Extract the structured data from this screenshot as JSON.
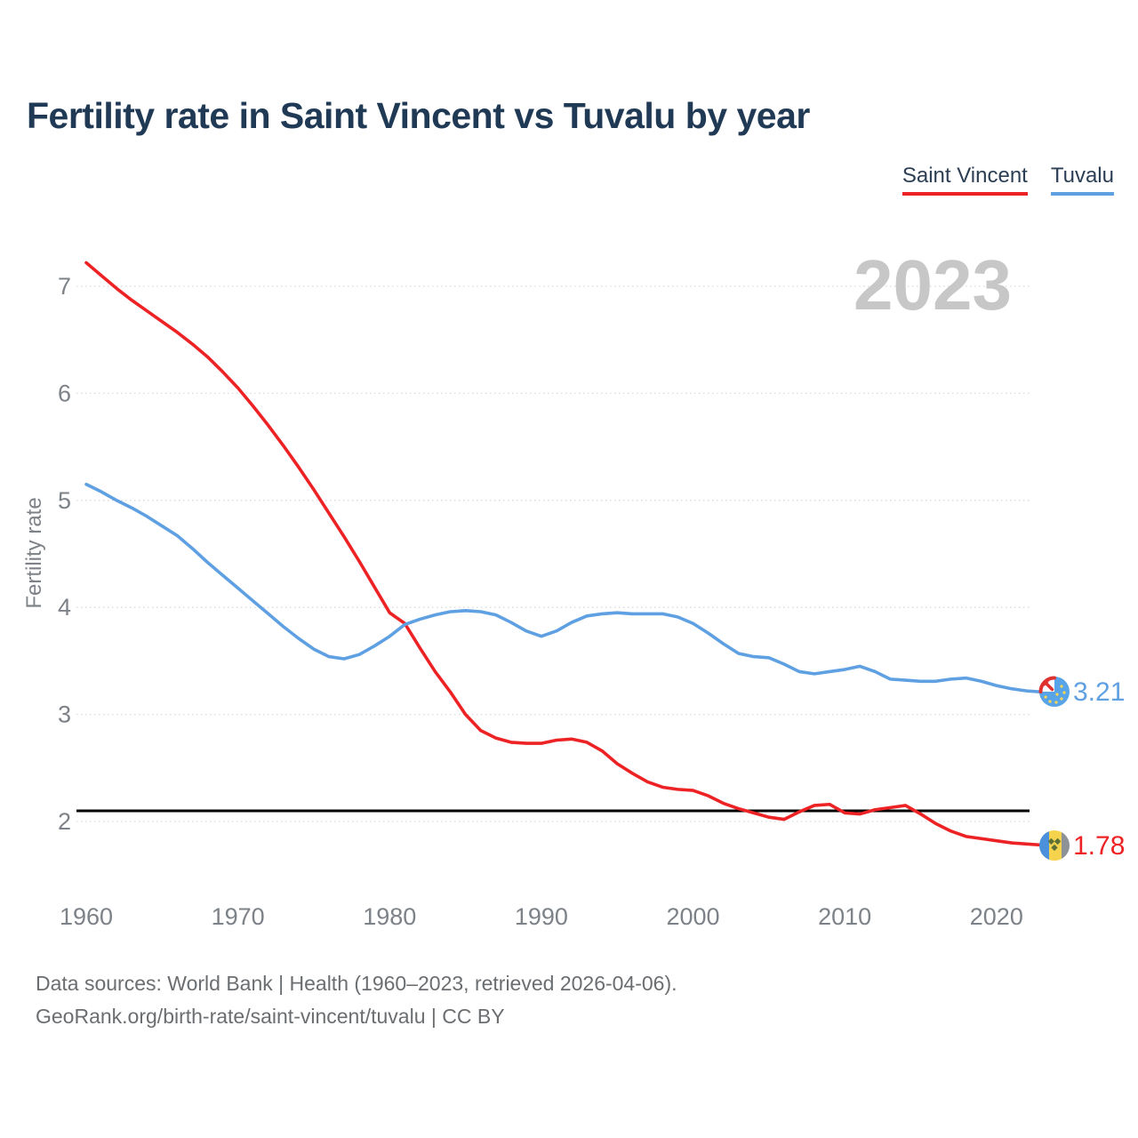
{
  "title": "Fertility rate in Saint Vincent vs Tuvalu by year",
  "watermark": "2023",
  "legend": {
    "items": [
      {
        "label": "Saint Vincent",
        "color": "#ed2224"
      },
      {
        "label": "Tuvalu",
        "color": "#5ea0e2"
      }
    ]
  },
  "footer": {
    "line1": "Data sources: World Bank | Health (1960–2023, retrieved 2026-04-06).",
    "line2": "GeoRank.org/birth-rate/saint-vincent/tuvalu | CC BY"
  },
  "end_labels": {
    "saint_vincent": "1.78",
    "tuvalu": "3.21"
  },
  "icons": {
    "saint_vincent_flag": "saint-vincent-flag-icon",
    "tuvalu_flag": "tuvalu-flag-icon"
  },
  "colors": {
    "saint_vincent": "#ed2224",
    "tuvalu": "#5ea0e2",
    "reference_line": "#000000",
    "grid": "#d9d9d9",
    "axis_text": "#7d8288",
    "watermark": "#c7c7c7",
    "title_text": "#203a56"
  },
  "chart_data": {
    "type": "line",
    "title": "Fertility rate in Saint Vincent vs Tuvalu by year",
    "xlabel": "",
    "ylabel": "Fertility rate",
    "xlim": [
      1960,
      2023
    ],
    "ylim": [
      1.4,
      7.4
    ],
    "x_ticks": [
      1960,
      1970,
      1980,
      1990,
      2000,
      2010,
      2020
    ],
    "y_ticks": [
      2,
      3,
      4,
      5,
      6,
      7
    ],
    "grid": "horizontal-dotted",
    "legend_position": "top-right",
    "reference_line": {
      "value": 2.1,
      "color": "#000000"
    },
    "x": [
      1960,
      1961,
      1962,
      1963,
      1964,
      1965,
      1966,
      1967,
      1968,
      1969,
      1970,
      1971,
      1972,
      1973,
      1974,
      1975,
      1976,
      1977,
      1978,
      1979,
      1980,
      1981,
      1982,
      1983,
      1984,
      1985,
      1986,
      1987,
      1988,
      1989,
      1990,
      1991,
      1992,
      1993,
      1994,
      1995,
      1996,
      1997,
      1998,
      1999,
      2000,
      2001,
      2002,
      2003,
      2004,
      2005,
      2006,
      2007,
      2008,
      2009,
      2010,
      2011,
      2012,
      2013,
      2014,
      2015,
      2016,
      2017,
      2018,
      2019,
      2020,
      2021,
      2022,
      2023
    ],
    "series": [
      {
        "name": "Saint Vincent",
        "color": "#ed2224",
        "end_label": "1.78",
        "values": [
          7.22,
          7.1,
          6.98,
          6.87,
          6.77,
          6.67,
          6.57,
          6.46,
          6.34,
          6.2,
          6.05,
          5.88,
          5.7,
          5.51,
          5.31,
          5.1,
          4.88,
          4.66,
          4.43,
          4.19,
          3.95,
          3.85,
          3.62,
          3.4,
          3.21,
          3.0,
          2.85,
          2.78,
          2.74,
          2.73,
          2.73,
          2.76,
          2.77,
          2.74,
          2.66,
          2.54,
          2.45,
          2.37,
          2.32,
          2.3,
          2.29,
          2.24,
          2.17,
          2.12,
          2.08,
          2.04,
          2.02,
          2.09,
          2.15,
          2.16,
          2.08,
          2.07,
          2.11,
          2.13,
          2.15,
          2.07,
          1.98,
          1.91,
          1.86,
          1.84,
          1.82,
          1.8,
          1.79,
          1.78
        ]
      },
      {
        "name": "Tuvalu",
        "color": "#5ea0e2",
        "end_label": "3.21",
        "values": [
          5.15,
          5.08,
          5.0,
          4.93,
          4.85,
          4.76,
          4.67,
          4.55,
          4.42,
          4.3,
          4.18,
          4.06,
          3.94,
          3.82,
          3.71,
          3.61,
          3.54,
          3.52,
          3.56,
          3.64,
          3.73,
          3.84,
          3.89,
          3.93,
          3.96,
          3.97,
          3.96,
          3.93,
          3.86,
          3.78,
          3.73,
          3.78,
          3.86,
          3.92,
          3.94,
          3.95,
          3.94,
          3.94,
          3.94,
          3.91,
          3.85,
          3.76,
          3.66,
          3.57,
          3.54,
          3.53,
          3.47,
          3.4,
          3.38,
          3.4,
          3.42,
          3.45,
          3.4,
          3.33,
          3.32,
          3.31,
          3.31,
          3.33,
          3.34,
          3.31,
          3.27,
          3.24,
          3.22,
          3.21
        ]
      }
    ]
  }
}
